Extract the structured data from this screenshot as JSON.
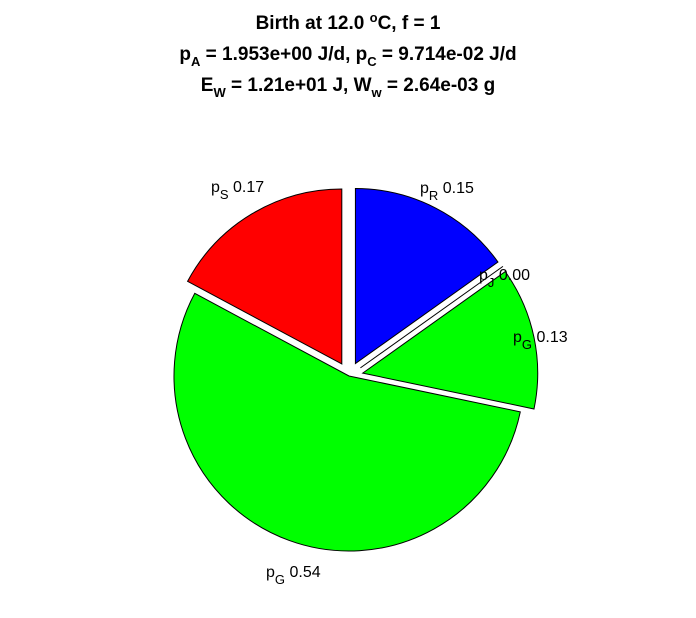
{
  "title": {
    "line1": {
      "pre": "Birth at 12.0 ",
      "sup": "o",
      "post": "C, f = 1"
    },
    "line2": {
      "a": "p",
      "a_sub": "A",
      "b": " = 1.953e+00 J/d, p",
      "b_sub": "C",
      "c": " = 9.714e-02 J/d"
    },
    "line3": {
      "a": "E",
      "a_sub": "W",
      "b": " = 1.21e+01 J, W",
      "b_sub": "w",
      "c": " = 2.64e-03 g"
    }
  },
  "chart_data": {
    "type": "pie",
    "slices": [
      {
        "sym": "p",
        "sub": "R",
        "value": 0.15,
        "label": "0.15",
        "color": "#0000ff",
        "explode": true
      },
      {
        "sym": "p",
        "sub": "J",
        "value": 0.0,
        "label": "0.00",
        "color": "#ffffff",
        "explode": true
      },
      {
        "sym": "p",
        "sub": "G",
        "value": 0.13,
        "label": "0.13",
        "color": "#00ff00",
        "explode": true
      },
      {
        "sym": "p",
        "sub": "G",
        "value": 0.54,
        "label": "0.54",
        "color": "#00ff00",
        "explode": false
      },
      {
        "sym": "p",
        "sub": "S",
        "value": 0.17,
        "label": "0.17",
        "color": "#ff0000",
        "explode": true
      }
    ]
  }
}
